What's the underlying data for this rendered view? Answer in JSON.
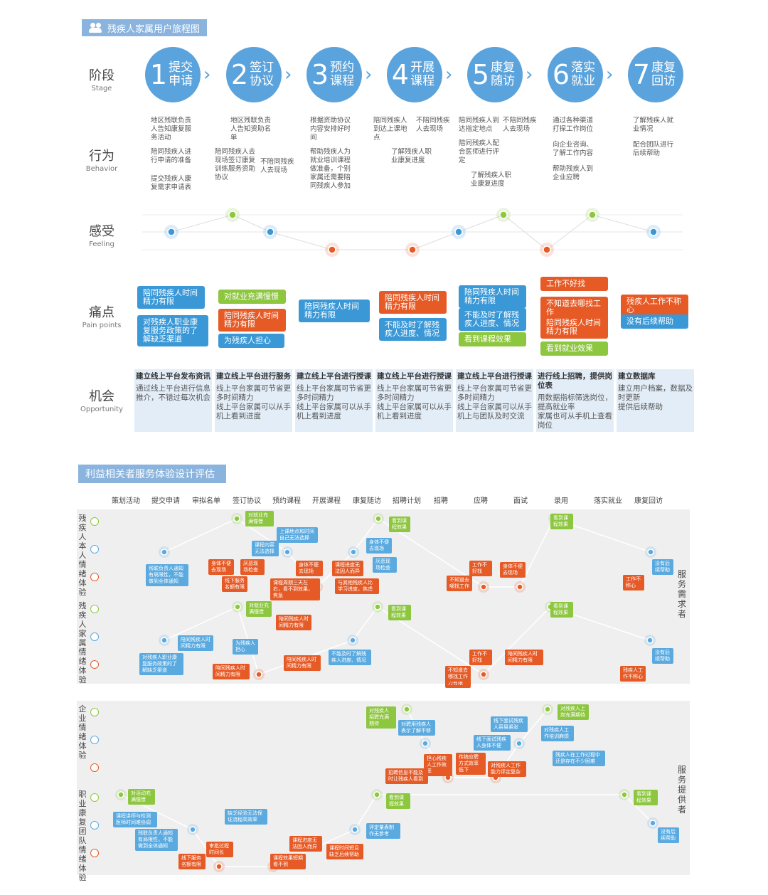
{
  "title": "残疾人家属用户旅程图",
  "rows": {
    "stage": {
      "cn": "阶段",
      "en": "Stage"
    },
    "behavior": {
      "cn": "行为",
      "en": "Behavior"
    },
    "feeling": {
      "cn": "感受",
      "en": "Feeling"
    },
    "pain": {
      "cn": "痛点",
      "en": "Pain points"
    },
    "opp": {
      "cn": "机会",
      "en": "Opportunity"
    }
  },
  "stages": [
    {
      "num": "1",
      "name": "提交申请"
    },
    {
      "num": "2",
      "name": "签订协议"
    },
    {
      "num": "3",
      "name": "预约课程"
    },
    {
      "num": "4",
      "name": "开展课程"
    },
    {
      "num": "5",
      "name": "康复随访"
    },
    {
      "num": "6",
      "name": "落实就业"
    },
    {
      "num": "7",
      "name": "康复回访"
    }
  ],
  "behaviors": [
    [
      "地区残联负责人告知康复服务活动",
      "陪同残疾人进行申请的准备",
      "提交残疾人康复需求申请表"
    ],
    [
      "地区残联负责人告知资助名单",
      "陪同残疾人去现场签订康复训练服务资助协议",
      "不陪同残疾人去现场"
    ],
    [
      "根据资助协议内容安排好时间",
      "帮助残疾人为就业培训课程做准备，个别家属还需要陪同残疾人参加"
    ],
    [
      "陪同残疾人到达上课地点",
      "不陪同残疾人去现场",
      "了解残疾人职业康复进度"
    ],
    [
      "陪同残疾人到达指定地点",
      "不陪同残疾人去现场",
      "陪同残疾人配合医师进行评定",
      "了解残疾人职业康复进度"
    ],
    [
      "通过各种渠道打探工作岗位",
      "向企业咨询、了解工作内容",
      "帮助残疾人到企业应聘"
    ],
    [
      "了解残疾人就业情况",
      "配合团队进行后续帮助"
    ]
  ],
  "feeling_levels": [
    "mid",
    "high",
    "mid",
    "low",
    "low",
    "mid",
    "high",
    "low",
    "high",
    "mid"
  ],
  "pains": [
    {
      "text": "陪同残疾人时间精力有限",
      "c": "b"
    },
    {
      "text": "对残疾人职业康复服务政策的了解缺乏渠道",
      "c": "b"
    },
    {
      "text": "对就业充满憧憬",
      "c": "g"
    },
    {
      "text": "陪同残疾人时间精力有限",
      "c": "o"
    },
    {
      "text": "为残疾人担心",
      "c": "b"
    },
    {
      "text": "陪同残疾人时间精力有限",
      "c": "b"
    },
    {
      "text": "陪同残疾人时间精力有限",
      "c": "o"
    },
    {
      "text": "不能及时了解残疾人进度、情况",
      "c": "b"
    },
    {
      "text": "陪同残疾人时间精力有限",
      "c": "b"
    },
    {
      "text": "不能及时了解残疾人进度、情况",
      "c": "b"
    },
    {
      "text": "看到课程效果",
      "c": "g"
    },
    {
      "text": "工作不好找",
      "c": "o"
    },
    {
      "text": "不知道去哪找工作",
      "c": "o"
    },
    {
      "text": "陪同残疾人时间精力有限",
      "c": "o"
    },
    {
      "text": "看到就业效果",
      "c": "g"
    },
    {
      "text": "残疾人工作不称心",
      "c": "o"
    },
    {
      "text": "没有后续帮助",
      "c": "b"
    }
  ],
  "opps": [
    {
      "h": "建立线上平台发布资讯",
      "t": "通过线上平台进行信息推介，不错过每次机会"
    },
    {
      "h": "建立线上平台进行服务",
      "t": "线上平台家属可节省更多时间精力\n线上平台家属可以从手机上看到进度"
    },
    {
      "h": "建立线上平台进行授课",
      "t": "线上平台家属可节省更多时间精力\n线上平台家属可以从手机上看到进度"
    },
    {
      "h": "建立线上平台进行授课",
      "t": "线上平台家属可节省更多时间精力\n线上平台家属可以从手机上看到进度"
    },
    {
      "h": "建立线上平台进行授课",
      "t": "线上平台家属可节省更多时间精力\n线上平台家属可以从手机上与团队及时交流"
    },
    {
      "h": "进行线上招聘，提供岗位表",
      "t": "用数据指标筛选岗位，提高就业率\n家属也可从手机上查看岗位"
    },
    {
      "h": "建立数据库",
      "t": "建立用户档案，数据及时更新\n提供后续帮助"
    }
  ],
  "eval_title": "利益相关者服务体验设计评估",
  "columns": [
    "策划活动",
    "提交申请",
    "审拟名单",
    "签订协议",
    "预约课程",
    "开展课程",
    "康复随访",
    "招聘计划",
    "招聘",
    "应聘",
    "面试",
    "录用",
    "落实就业",
    "康复回访"
  ],
  "side": {
    "demand": "服务需求者",
    "provider": "服务提供者"
  },
  "lanes": [
    "残疾人本人情绪体验",
    "残疾人家属情绪体验",
    "企业情绪体验",
    "职业康复团队情绪体验"
  ],
  "notes": [
    "对就业充满憧憬",
    "上课地点和时间自己无法选择",
    "课程内容无法选择",
    "身体不便去现场",
    "厌恶现场检查",
    "线下服务名额有限",
    "身体不便去现场",
    "课程周期三天左右，看不到效果，焦急",
    "课程进度无法因人而异",
    "与其他残疾人比学习进度，焦虑",
    "身体不便去现场",
    "厌恶现场检查",
    "看到课程效果",
    "工作不好找",
    "身体不便去现场",
    "不知道去哪找工作",
    "看到课程效果",
    "工作不称心",
    "没有后续帮助",
    "残联负责人通知有局限性，不能做到全体通知",
    "对就业充满憧憬",
    "陪同残疾人时间精力有限",
    "为残疾人担心",
    "陪同残疾人时间精力有限",
    "陪同残疾人时间精力有限",
    "对残疾人职业康复服务政策的了解缺乏渠道",
    "陪同残疾人时间精力有限",
    "陪同残疾人时间精力有限",
    "不能及时了解残疾人进度、情况",
    "看到课程效果",
    "工作不好找",
    "陪同残疾人时间精力有限",
    "不知道去哪找工作",
    "看到课程效果",
    "残疾人工作不称心",
    "没有后续帮助",
    "对残疾人招聘充满期待",
    "对聘用残疾人表示了解不够",
    "担心残疾人工作效率",
    "招聘信息不能及时让残疾人看到",
    "传统应聘方式效率低下",
    "线下面试残疾人身体不便",
    "线下面试残疾人容易紧张",
    "对残疾人工作能力评定复杂",
    "对残疾人上岗充满期待",
    "对残疾人工作培训麻烦",
    "残疾人在工作过程中还是存在不少困难",
    "对活动充满憧憬",
    "课程讲师与检测医师时间难协调",
    "残联负责人通知有局限性，不能做到全体通知",
    "线下服务名额有限",
    "审批过程时间长",
    "缺乏经验无法保证流程高效率",
    "课程进度无法因人而异",
    "课程效果短期看不到",
    "课程时间短且缺乏后续帮助",
    "评定量表制作无参考",
    "看到课程效果",
    "看到课程效果",
    "没有后续帮助"
  ]
}
